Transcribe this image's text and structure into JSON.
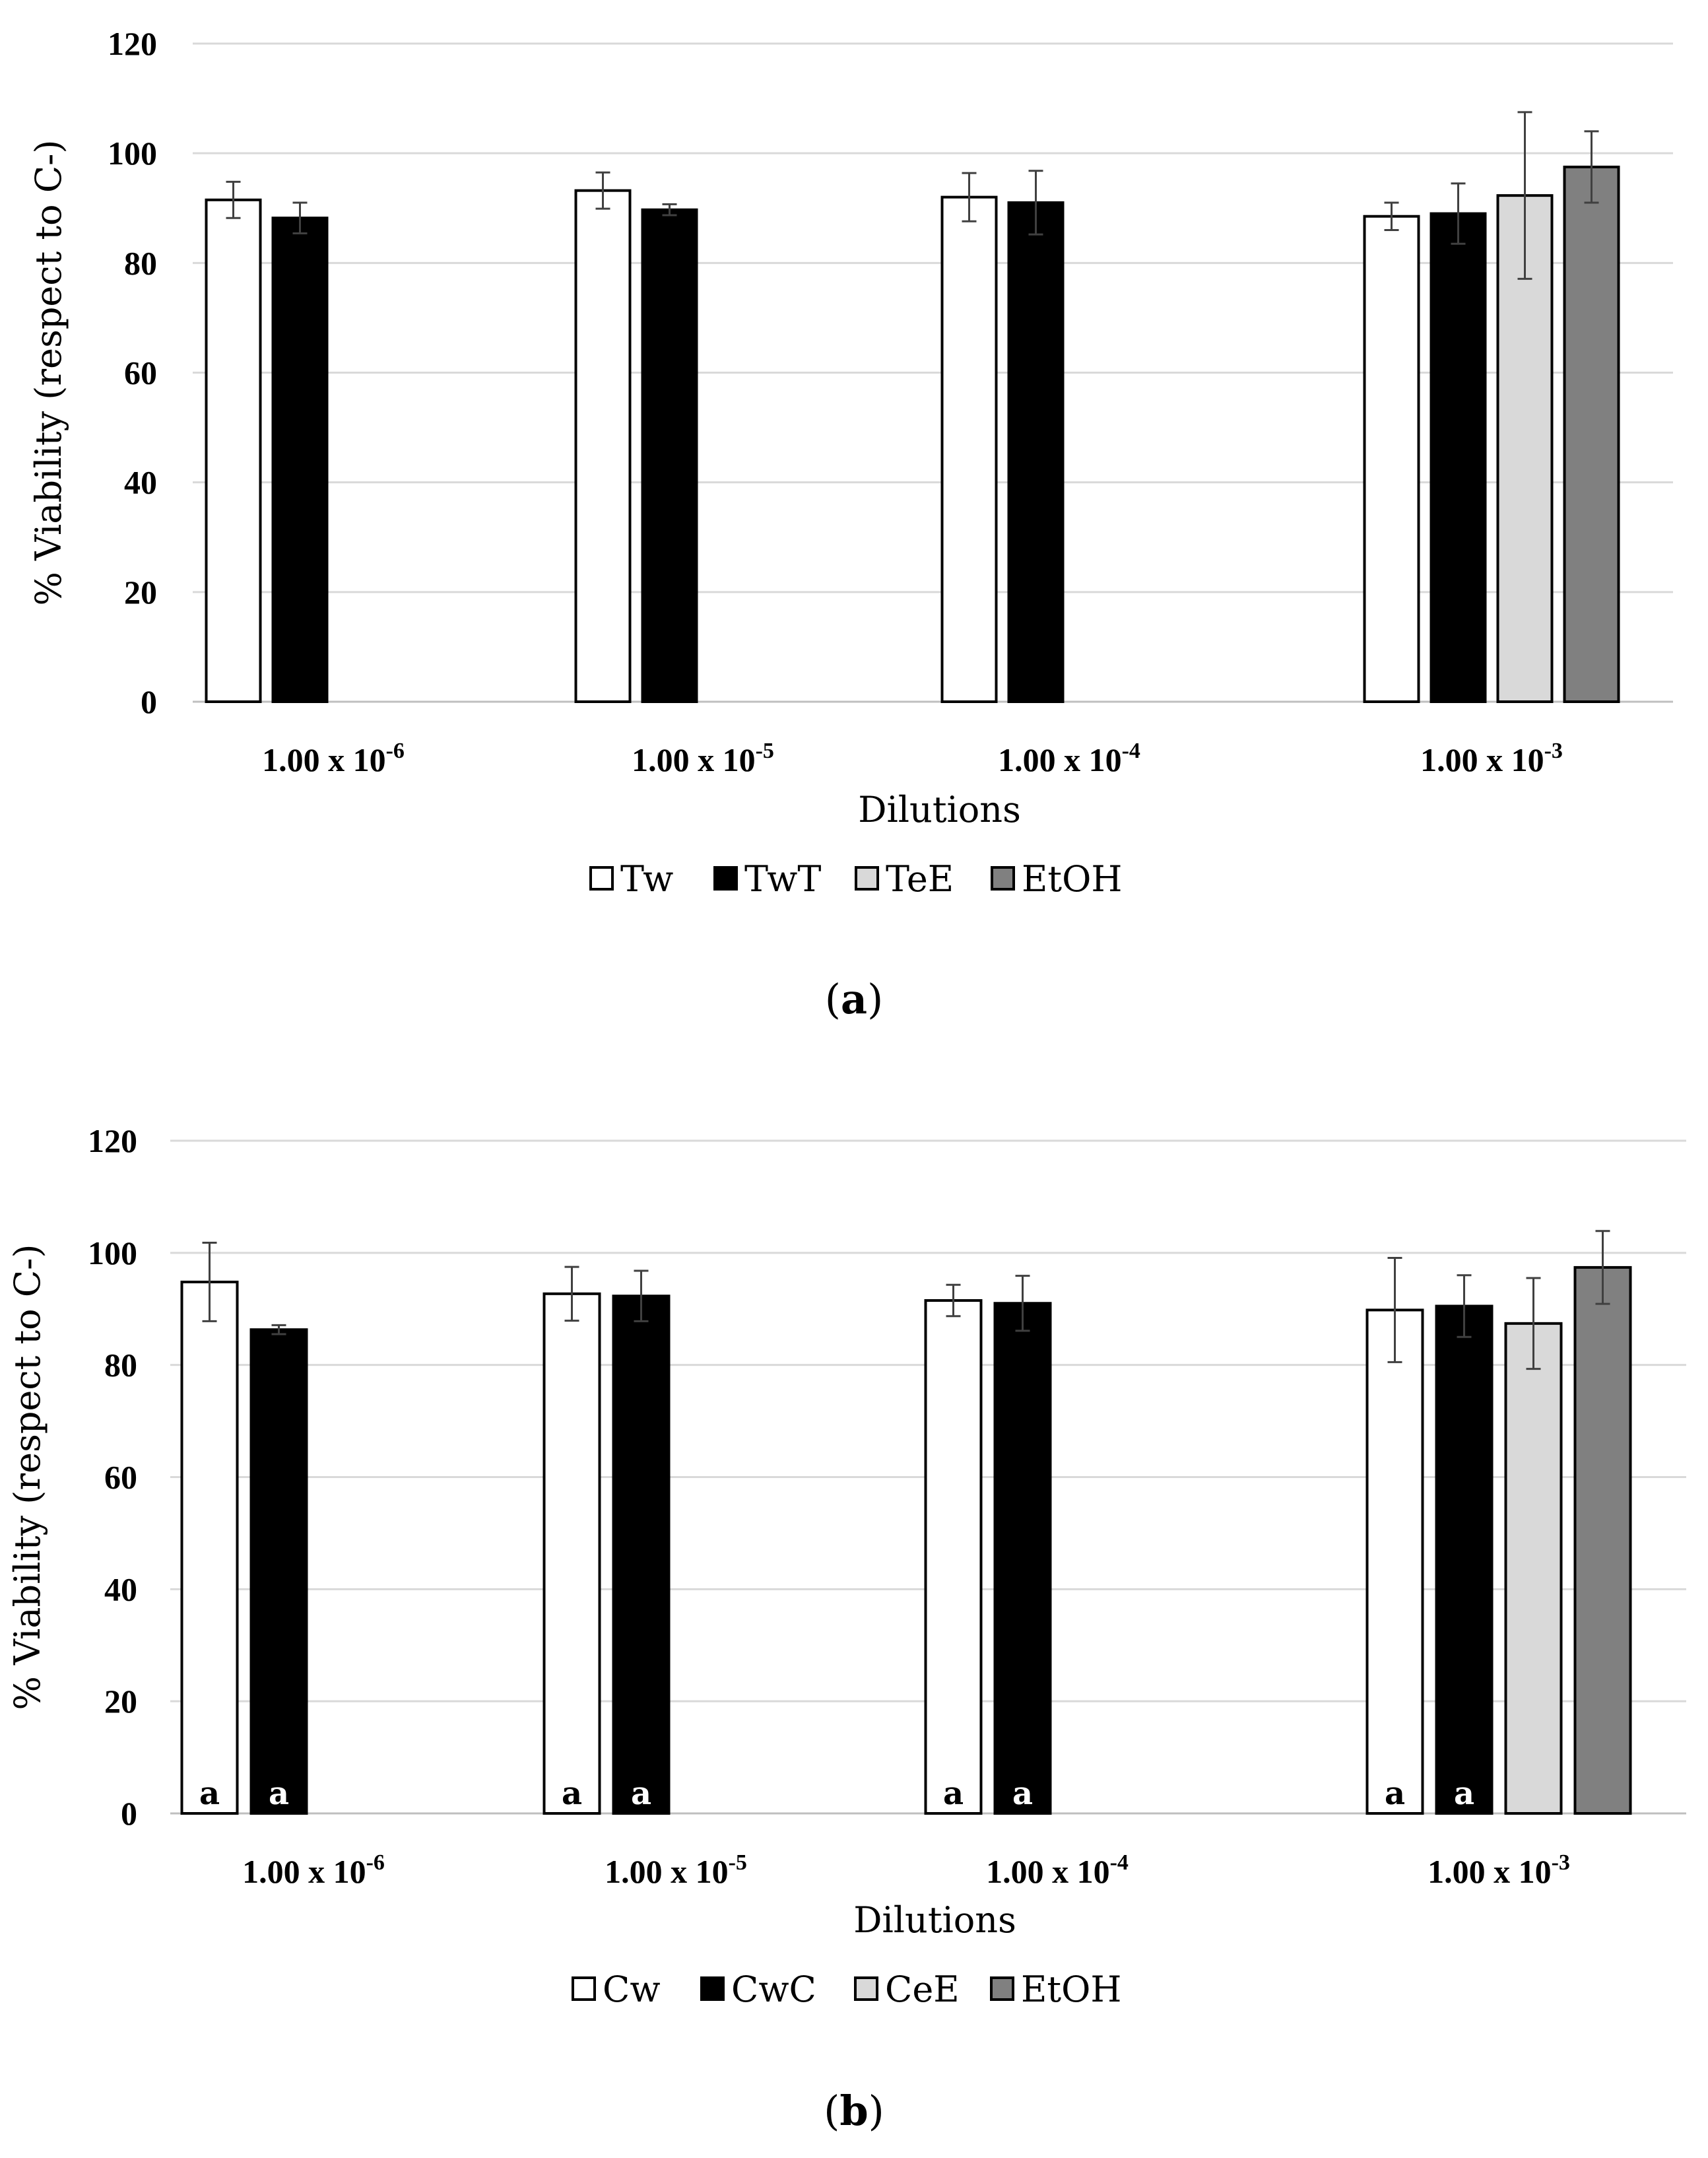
{
  "chart_data": [
    {
      "panel": "a",
      "type": "bar",
      "caption_letter": "a",
      "caption_open": "(",
      "caption_close": ")",
      "xlabel": "Dilutions",
      "ylabel": "% Viability (respect to C-)",
      "ylim": [
        0,
        120
      ],
      "yticks": [
        0,
        20,
        40,
        60,
        80,
        100,
        120
      ],
      "grid": true,
      "legend_position": "bottom",
      "categories": [
        {
          "base": "1.00 x 10",
          "exp": "-6"
        },
        {
          "base": "1.00 x 10",
          "exp": "-5"
        },
        {
          "base": "1.00 x 10",
          "exp": "-4"
        },
        {
          "base": "1.00 x 10",
          "exp": "-3"
        }
      ],
      "series": [
        {
          "name": "Tw",
          "color": "#ffffff",
          "values": [
            91.5,
            93.2,
            92.0,
            88.5
          ],
          "errors": [
            3.3,
            3.3,
            4.4,
            2.5
          ],
          "labels": [
            "",
            "",
            "",
            ""
          ]
        },
        {
          "name": "TwT",
          "color": "#000000",
          "values": [
            88.2,
            89.7,
            91.0,
            89.0
          ],
          "errors": [
            2.8,
            1.0,
            5.8,
            5.5
          ],
          "labels": [
            "",
            "",
            "",
            ""
          ]
        },
        {
          "name": "TeE",
          "color": "#d9d9d9",
          "values": [
            null,
            null,
            null,
            92.3
          ],
          "errors": [
            null,
            null,
            null,
            15.2
          ],
          "labels": [
            "",
            "",
            "",
            ""
          ]
        },
        {
          "name": "EtOH",
          "color": "#808080",
          "values": [
            null,
            null,
            null,
            97.5
          ],
          "errors": [
            null,
            null,
            null,
            6.5
          ],
          "labels": [
            "",
            "",
            "",
            ""
          ]
        }
      ]
    },
    {
      "panel": "b",
      "type": "bar",
      "caption_letter": "b",
      "caption_open": "(",
      "caption_close": ")",
      "xlabel": "Dilutions",
      "ylabel": "% Viability (respect to C-)",
      "ylim": [
        0,
        120
      ],
      "yticks": [
        0,
        20,
        40,
        60,
        80,
        100,
        120
      ],
      "grid": true,
      "legend_position": "bottom",
      "categories": [
        {
          "base": "1.00 x 10",
          "exp": "-6"
        },
        {
          "base": "1.00 x 10",
          "exp": "-5"
        },
        {
          "base": "1.00 x 10",
          "exp": "-4"
        },
        {
          "base": "1.00 x 10",
          "exp": "-3"
        }
      ],
      "series": [
        {
          "name": "Cw",
          "color": "#ffffff",
          "values": [
            94.8,
            92.7,
            91.5,
            89.8
          ],
          "errors": [
            7.0,
            4.8,
            2.8,
            9.3
          ],
          "labels": [
            "a",
            "a",
            "a",
            "a"
          ]
        },
        {
          "name": "CwC",
          "color": "#000000",
          "values": [
            86.3,
            92.3,
            91.0,
            90.5
          ],
          "errors": [
            0.8,
            4.5,
            4.9,
            5.5
          ],
          "labels": [
            "a",
            "a",
            "a",
            "a"
          ]
        },
        {
          "name": "CeE",
          "color": "#d9d9d9",
          "values": [
            null,
            null,
            null,
            87.4
          ],
          "errors": [
            null,
            null,
            null,
            8.1
          ],
          "labels": [
            "",
            "",
            "",
            ""
          ]
        },
        {
          "name": "EtOH",
          "color": "#808080",
          "values": [
            null,
            null,
            null,
            97.4
          ],
          "errors": [
            null,
            null,
            null,
            6.5
          ],
          "labels": [
            "",
            "",
            "",
            ""
          ]
        }
      ]
    }
  ]
}
